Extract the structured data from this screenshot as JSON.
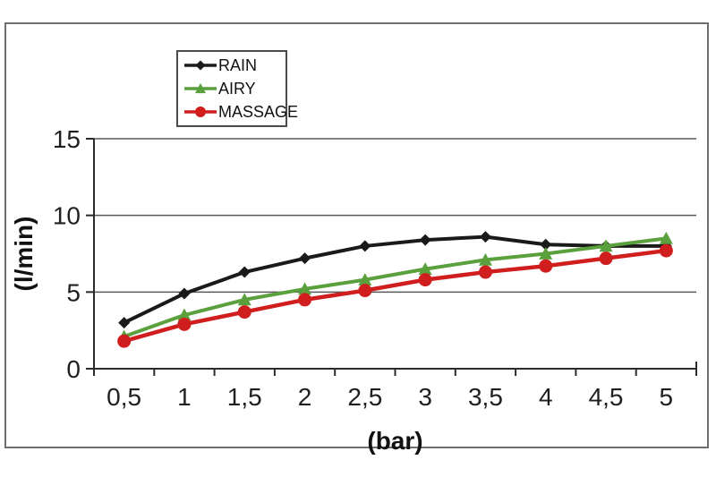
{
  "chart_data": {
    "type": "line",
    "x_categories": [
      "0,5",
      "1",
      "1,5",
      "2",
      "2,5",
      "3",
      "3,5",
      "4",
      "4,5",
      "5"
    ],
    "x_values": [
      0.5,
      1,
      1.5,
      2,
      2.5,
      3,
      3.5,
      4,
      4.5,
      5
    ],
    "series": [
      {
        "name": "RAIN",
        "color": "#1a1a1a",
        "marker": "diamond",
        "line_width": 4,
        "values": [
          3.0,
          4.9,
          6.3,
          7.2,
          8.0,
          8.4,
          8.6,
          8.1,
          8.0,
          8.0
        ]
      },
      {
        "name": "AIRY",
        "color": "#5aa03c",
        "marker": "triangle",
        "line_width": 4,
        "values": [
          2.1,
          3.5,
          4.5,
          5.2,
          5.8,
          6.5,
          7.1,
          7.5,
          8.0,
          8.5
        ]
      },
      {
        "name": "MASSAGE",
        "color": "#d01e1e",
        "marker": "circle",
        "line_width": 4.5,
        "values": [
          1.8,
          2.9,
          3.7,
          4.5,
          5.1,
          5.8,
          6.3,
          6.7,
          7.2,
          7.7
        ]
      }
    ],
    "xlabel": "(bar)",
    "ylabel": "(l/min)",
    "ylim": [
      0,
      15
    ],
    "yticks": [
      0,
      5,
      10,
      15
    ],
    "grid": "horizontal",
    "grid_color": "#595959",
    "axis_color": "#2b2b2b",
    "text_color": "#1f1f1f",
    "legend_position": "top-left-inside",
    "background": "#ffffff"
  }
}
